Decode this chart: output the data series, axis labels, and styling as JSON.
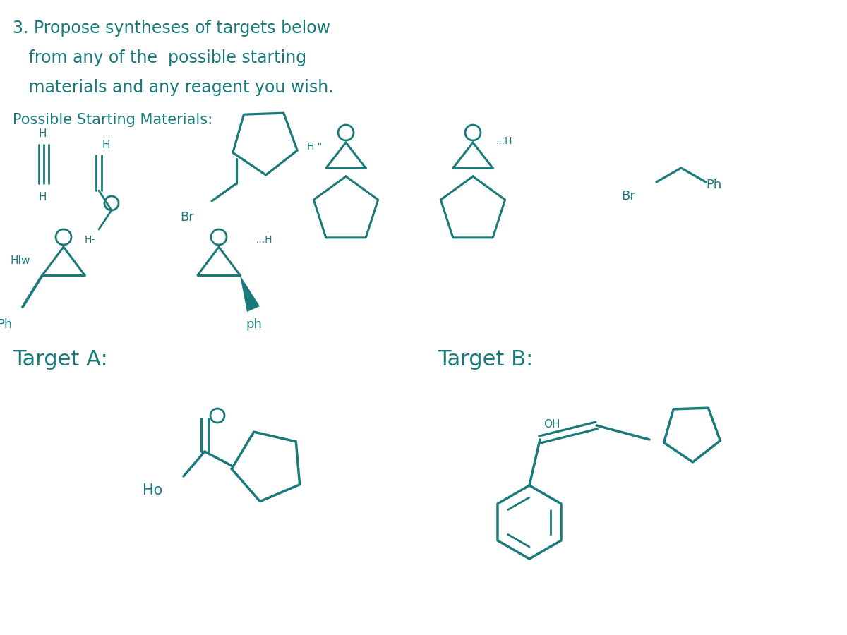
{
  "bg_color": "#ffffff",
  "ink_color": "#1a7a7a",
  "title_line1": "3. Propose syntheses of targets below",
  "title_line2": "   from any of the  possible starting",
  "title_line3": "   materials and any reagent you wish.",
  "section_label": "Possible Starting Materials:",
  "target_a_label": "Target A:",
  "target_b_label": "Target B:",
  "figsize": [
    12.0,
    9.0
  ],
  "dpi": 100
}
